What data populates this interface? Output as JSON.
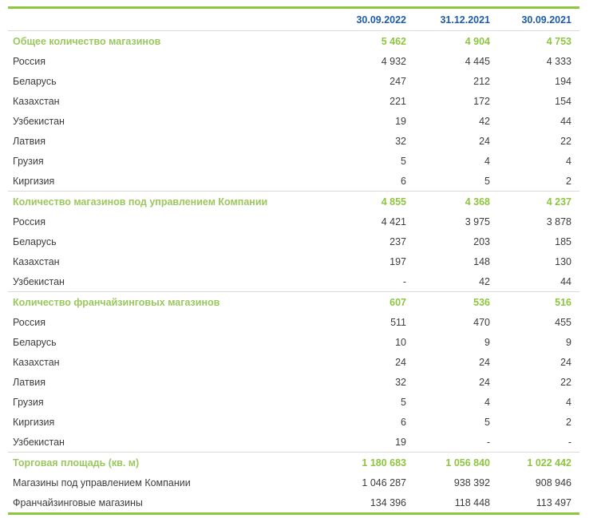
{
  "colors": {
    "accent_green": "#8DC63F",
    "section_label_green": "#9BC85E",
    "header_blue": "#1D5CA9",
    "body_text": "#3D3D3D",
    "divider": "#D9D9D9"
  },
  "table": {
    "columns": [
      "30.09.2022",
      "31.12.2021",
      "30.09.2021"
    ],
    "sections": [
      {
        "title": "Общее количество магазинов",
        "values": [
          "5 462",
          "4 904",
          "4 753"
        ],
        "rows": [
          {
            "label": "Россия",
            "values": [
              "4 932",
              "4 445",
              "4 333"
            ]
          },
          {
            "label": "Беларусь",
            "values": [
              "247",
              "212",
              "194"
            ]
          },
          {
            "label": "Казахстан",
            "values": [
              "221",
              "172",
              "154"
            ]
          },
          {
            "label": "Узбекистан",
            "values": [
              "19",
              "42",
              "44"
            ]
          },
          {
            "label": "Латвия",
            "values": [
              "32",
              "24",
              "22"
            ]
          },
          {
            "label": "Грузия",
            "values": [
              "5",
              "4",
              "4"
            ]
          },
          {
            "label": "Киргизия",
            "values": [
              "6",
              "5",
              "2"
            ]
          }
        ]
      },
      {
        "title": "Количество магазинов под управлением Компании",
        "values": [
          "4 855",
          "4 368",
          "4 237"
        ],
        "rows": [
          {
            "label": "Россия",
            "values": [
              "4 421",
              "3 975",
              "3 878"
            ]
          },
          {
            "label": "Беларусь",
            "values": [
              "237",
              "203",
              "185"
            ]
          },
          {
            "label": "Казахстан",
            "values": [
              "197",
              "148",
              "130"
            ]
          },
          {
            "label": "Узбекистан",
            "values": [
              "-",
              "42",
              "44"
            ]
          }
        ]
      },
      {
        "title": "Количество франчайзинговых магазинов",
        "values": [
          "607",
          "536",
          "516"
        ],
        "rows": [
          {
            "label": "Россия",
            "values": [
              "511",
              "470",
              "455"
            ]
          },
          {
            "label": "Беларусь",
            "values": [
              "10",
              "9",
              "9"
            ]
          },
          {
            "label": "Казахстан",
            "values": [
              "24",
              "24",
              "24"
            ]
          },
          {
            "label": "Латвия",
            "values": [
              "32",
              "24",
              "22"
            ]
          },
          {
            "label": "Грузия",
            "values": [
              "5",
              "4",
              "4"
            ]
          },
          {
            "label": "Киргизия",
            "values": [
              "6",
              "5",
              "2"
            ]
          },
          {
            "label": "Узбекистан",
            "values": [
              "19",
              "-",
              "-"
            ]
          }
        ]
      },
      {
        "title": "Торговая площадь (кв. м)",
        "values": [
          "1 180 683",
          "1 056 840",
          "1 022 442"
        ],
        "rows": [
          {
            "label": "Магазины под управлением Компании",
            "values": [
              "1 046 287",
              "938 392",
              "908 946"
            ]
          },
          {
            "label": "Франчайзинговые магазины",
            "values": [
              "134 396",
              "118 448",
              "113 497"
            ]
          }
        ]
      }
    ]
  }
}
